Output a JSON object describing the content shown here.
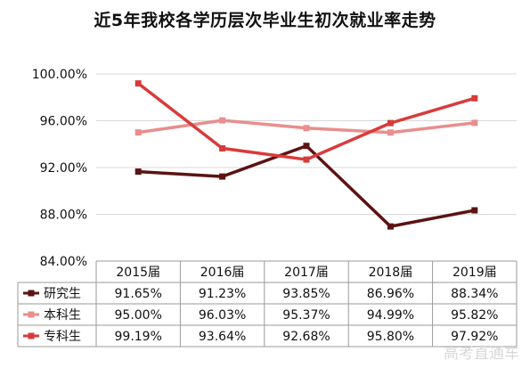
{
  "chart_data": {
    "type": "line",
    "title": "近5年我校各学历层次毕业生初次就业率走势",
    "categories": [
      "2015届",
      "2016届",
      "2017届",
      "2018届",
      "2019届"
    ],
    "ylim": [
      84,
      100
    ],
    "yticks": [
      "84.00%",
      "88.00%",
      "92.00%",
      "96.00%",
      "100.00%"
    ],
    "ytick_values": [
      84,
      88,
      92,
      96,
      100
    ],
    "grid": true,
    "legend": "data-table-left",
    "series": [
      {
        "name": "研究生",
        "color": "#5c1313",
        "values": [
          91.65,
          91.23,
          93.85,
          86.96,
          88.34
        ],
        "labels": [
          "91.65%",
          "91.23%",
          "93.85%",
          "86.96%",
          "88.34%"
        ]
      },
      {
        "name": "本科生",
        "color": "#e88e8e",
        "values": [
          95.0,
          96.03,
          95.37,
          94.99,
          95.82
        ],
        "labels": [
          "95.00%",
          "96.03%",
          "95.37%",
          "94.99%",
          "95.82%"
        ]
      },
      {
        "name": "专科生",
        "color": "#d83b3b",
        "values": [
          99.19,
          93.64,
          92.68,
          95.8,
          97.92
        ],
        "labels": [
          "99.19%",
          "93.64%",
          "92.68%",
          "95.80%",
          "97.92%"
        ]
      }
    ]
  },
  "watermark": "高考直通车"
}
